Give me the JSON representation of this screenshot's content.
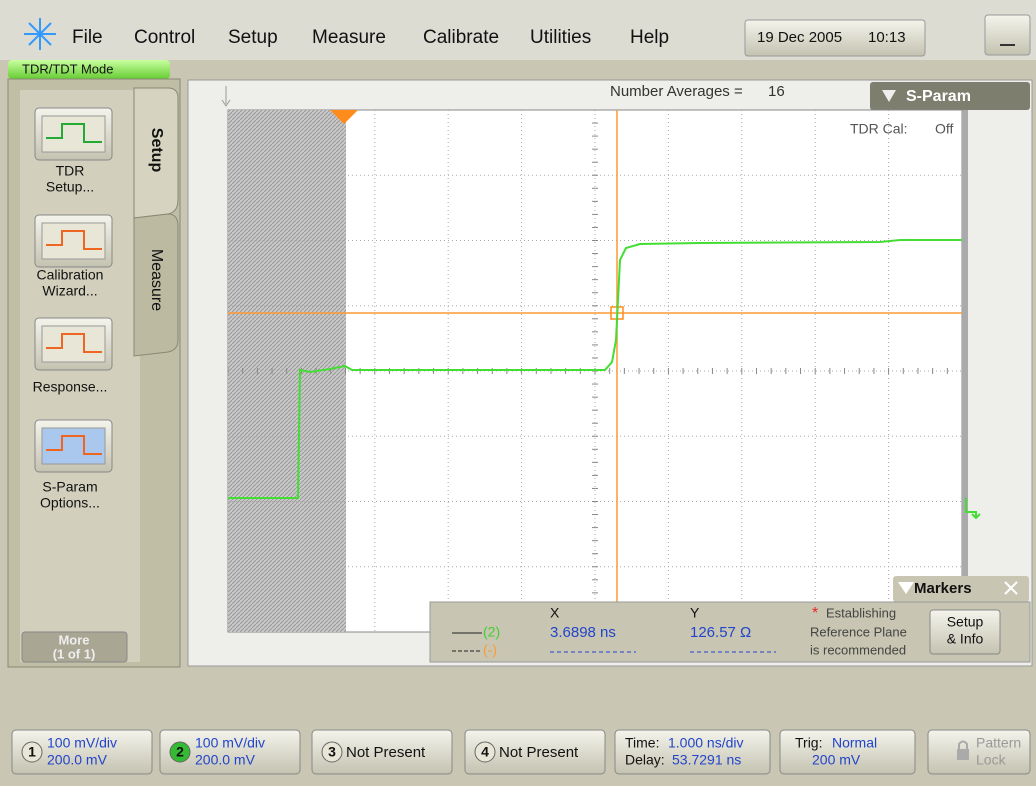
{
  "menu": {
    "items": [
      "File",
      "Control",
      "Setup",
      "Measure",
      "Calibrate",
      "Utilities",
      "Help"
    ],
    "date": "19 Dec 2005",
    "time": "10:13"
  },
  "mode_tab": "TDR/TDT Mode",
  "side_tabs": [
    "Setup",
    "Measure"
  ],
  "side_buttons": [
    [
      "TDR",
      "Setup..."
    ],
    [
      "Calibration",
      "Wizard..."
    ],
    [
      "Response..."
    ],
    [
      "S-Param",
      "Options..."
    ]
  ],
  "more_button": [
    "More",
    "(1 of 1)"
  ],
  "display": {
    "averages_label": "Number Averages =",
    "averages": 16,
    "s_param_tab": "S-Param",
    "tdr_cal_label": "TDR Cal:",
    "tdr_cal": "Off"
  },
  "markers": {
    "title": "Markers",
    "trace_1": "(2)",
    "trace_2": "(-)",
    "x_header": "X",
    "x_value": "3.6898 ns",
    "y_header": "Y",
    "y_value": "126.57 Ω",
    "asterisk": "*",
    "note": [
      "Establishing",
      "Reference Plane",
      "is recommended"
    ],
    "setup_button": [
      "Setup",
      "& Info"
    ]
  },
  "status": {
    "channels": [
      {
        "number": 1,
        "scale": "100 mV/div",
        "offset": "200.0 mV"
      },
      {
        "number": 2,
        "scale": "100 mV/div",
        "offset": "200.0 mV"
      },
      {
        "number": 3,
        "text": "Not Present"
      },
      {
        "number": 4,
        "text": "Not Present"
      }
    ],
    "time": {
      "time_label": "Time:",
      "time": "1.000 ns/div",
      "delay_label": "Delay:",
      "delay": "53.7291 ns"
    },
    "trig": {
      "label": "Trig:",
      "mode": "Normal",
      "level": "200 mV"
    },
    "pattern_lock": [
      "Pattern",
      "Lock"
    ]
  }
}
